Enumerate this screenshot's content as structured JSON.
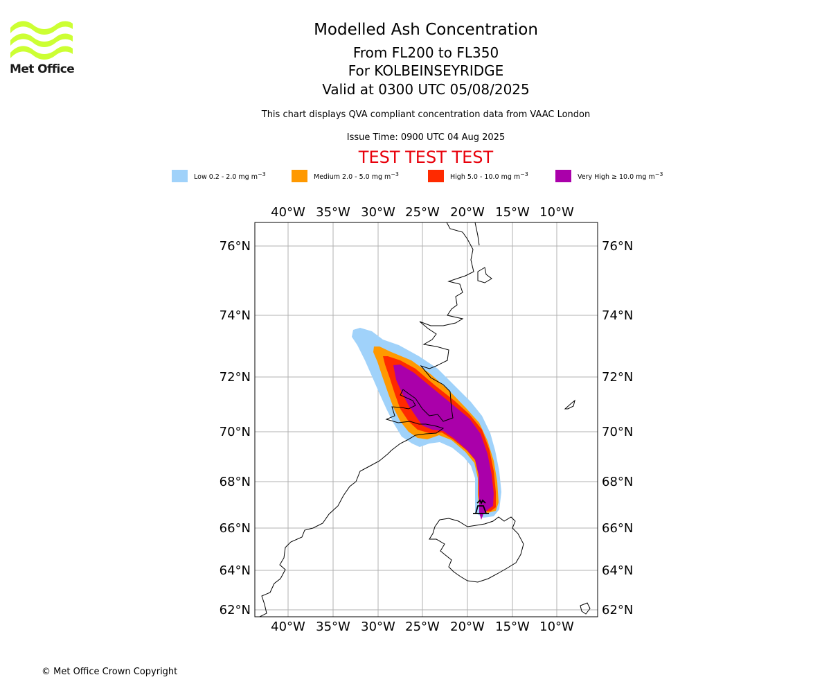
{
  "logo": {
    "text": "Met Office",
    "color": "#ccff33"
  },
  "title": {
    "main": "Modelled Ash Concentration",
    "levels": "From FL200 to FL350",
    "volcano": "For KOLBEINSEYRIDGE",
    "valid": "Valid at 0300 UTC 05/08/2025",
    "description": "This chart displays QVA compliant concentration data from VAAC London",
    "issue_time": "Issue Time: 0900 UTC 04 Aug 2025",
    "test_banner": "TEST TEST TEST"
  },
  "legend": [
    {
      "prefix": "Low 0.2 - 2.0 mg m",
      "sup": "−3",
      "color": "#a0d2fa"
    },
    {
      "prefix": "Medium 2.0 - 5.0 mg m",
      "sup": "−3",
      "color": "#ff9900"
    },
    {
      "prefix": "High 5.0 - 10.0 mg m",
      "sup": "−3",
      "color": "#ff2a00"
    },
    {
      "prefix": "Very High  ≥  10.0 mg m",
      "sup": "−3",
      "color": "#aa00aa"
    }
  ],
  "map": {
    "lon_labels": [
      "40°W",
      "35°W",
      "30°W",
      "25°W",
      "20°W",
      "15°W",
      "10°W"
    ],
    "lat_labels": [
      "76°N",
      "74°N",
      "72°N",
      "70°N",
      "68°N",
      "66°N",
      "64°N",
      "62°N"
    ],
    "grid": true,
    "volcano_symbol": "volcano-icon"
  },
  "copyright": "© Met Office Crown Copyright"
}
